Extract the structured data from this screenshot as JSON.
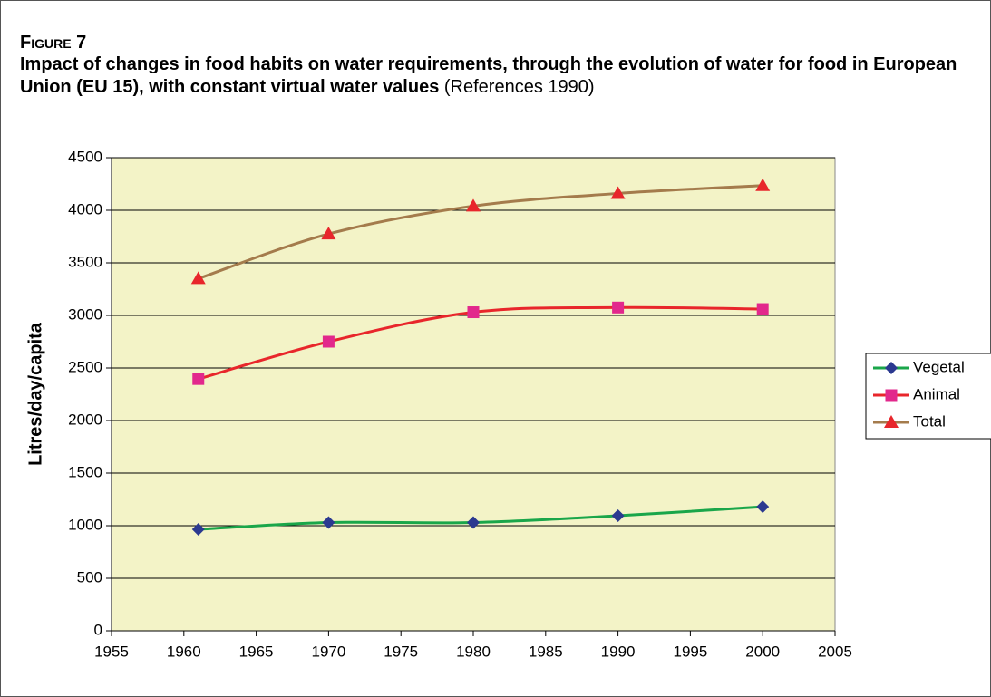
{
  "figure_label": "Figure 7",
  "chart_data": {
    "type": "line",
    "title": "Impact of changes in food habits on water requirements, through the evolution of water for food in European Union (EU 15), with constant virtual water values",
    "subtitle": "(References 1990)",
    "y_label": "Litres/day/capita",
    "x": [
      1961,
      1970,
      1980,
      1990,
      2000
    ],
    "series": [
      {
        "name": "Vegetal",
        "color": "#1aa64a",
        "marker": "diamond",
        "marker_color": "#2b3990",
        "values": [
          965,
          1030,
          1030,
          1095,
          1180
        ]
      },
      {
        "name": "Animal",
        "color": "#e8262b",
        "marker": "square",
        "marker_color": "#e2288c",
        "values": [
          2395,
          2750,
          3030,
          3075,
          3060
        ]
      },
      {
        "name": "Total",
        "color": "#a47b4c",
        "marker": "triangle",
        "marker_color": "#e8262b",
        "values": [
          3350,
          3775,
          4040,
          4160,
          4235
        ]
      }
    ],
    "xlim": [
      1955,
      2005
    ],
    "xticks": [
      1955,
      1960,
      1965,
      1970,
      1975,
      1980,
      1985,
      1990,
      1995,
      2000,
      2005
    ],
    "ylim": [
      0,
      4500
    ],
    "yticks": [
      0,
      500,
      1000,
      1500,
      2000,
      2500,
      3000,
      3500,
      4000,
      4500
    ],
    "grid": true,
    "legend": "right",
    "plot_background": "#f3f3c7"
  }
}
